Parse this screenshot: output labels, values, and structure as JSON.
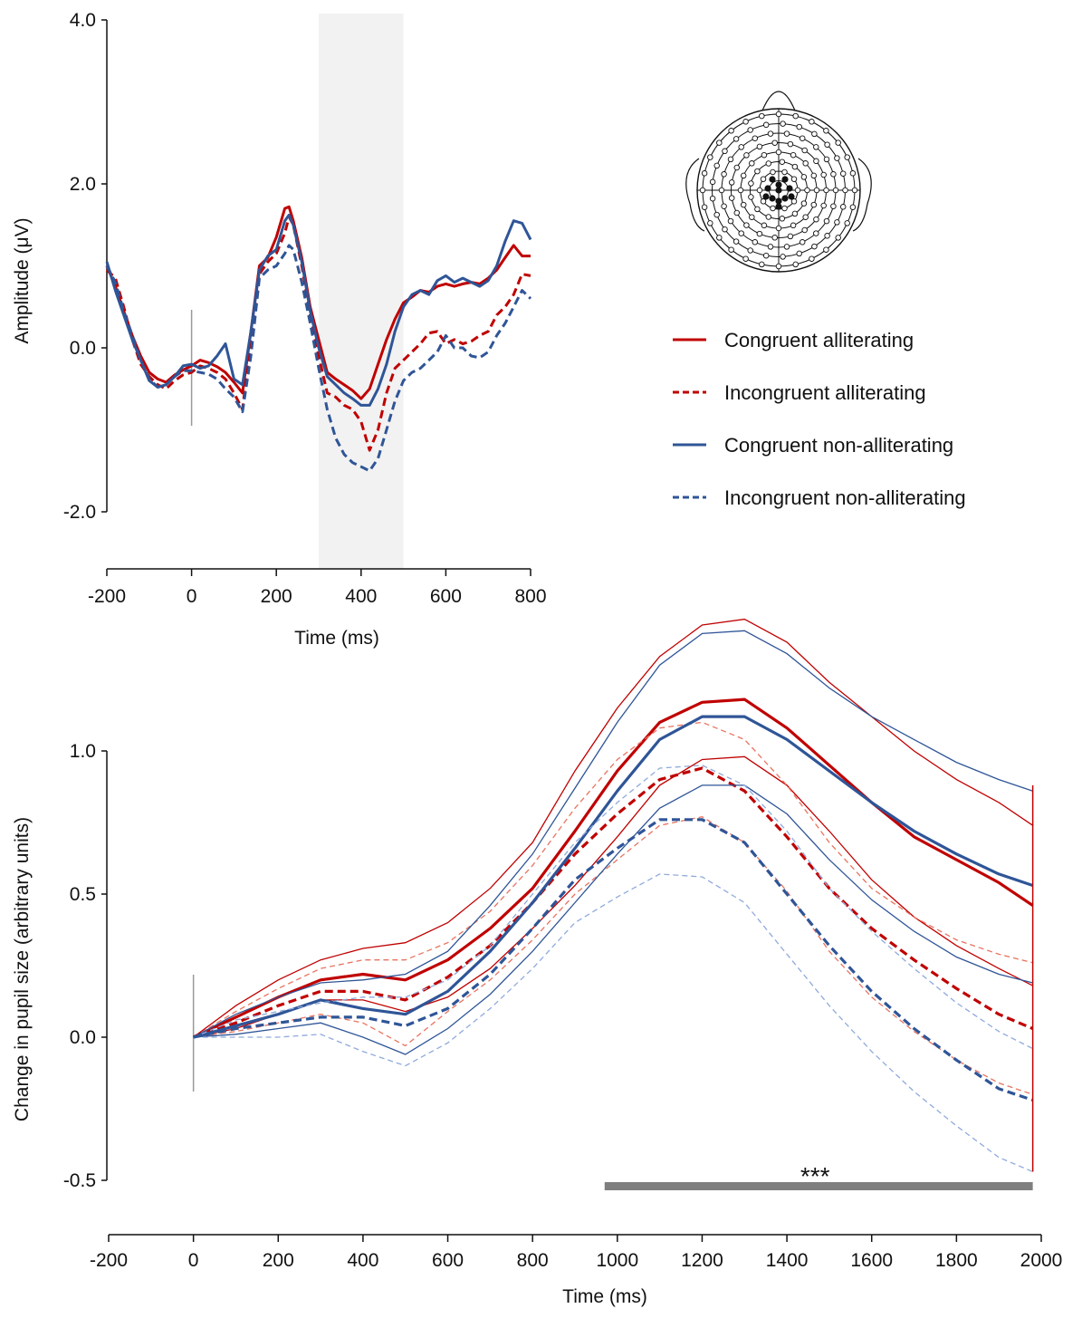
{
  "colors": {
    "red": "#c00000",
    "blue": "#2f5597",
    "light_red": "#e8735f",
    "light_blue": "#8faadc",
    "shade": "#f2f2f2",
    "sig_bar": "#7f7f7f"
  },
  "legend": {
    "items": [
      {
        "label": "Congruent alliterating",
        "style": "solid",
        "color": "#c00000"
      },
      {
        "label": "Incongruent alliterating",
        "style": "dashed",
        "color": "#c00000"
      },
      {
        "label": "Congruent non-alliterating",
        "style": "solid",
        "color": "#2f5597"
      },
      {
        "label": "Incongruent  non-alliterating",
        "style": "dashed",
        "color": "#2f5597"
      }
    ]
  },
  "chart_data": [
    {
      "type": "line",
      "xlabel": "Time (ms)",
      "ylabel": "Amplitude (μV)",
      "xlim": [
        -200,
        800
      ],
      "ylim": [
        -2.5,
        4.0
      ],
      "xticks": [
        -200,
        0,
        200,
        400,
        600,
        800
      ],
      "xtick_labels": [
        "-200",
        "0",
        "200",
        "400",
        "600",
        "800"
      ],
      "yticks": [
        4.0,
        2.0,
        0.0,
        -2.0
      ],
      "ytick_labels": [
        "4.0",
        "2.0",
        "0.0",
        "-2.0"
      ],
      "shaded_window": [
        300,
        500
      ],
      "stimulus_onset": 0,
      "series": [
        {
          "name": "Congruent alliterating",
          "style": "solid",
          "color": "#c00000",
          "x": [
            -200,
            -180,
            -160,
            -140,
            -120,
            -100,
            -80,
            -60,
            -40,
            -20,
            0,
            20,
            40,
            60,
            80,
            100,
            120,
            140,
            160,
            180,
            200,
            220,
            230,
            240,
            260,
            280,
            300,
            320,
            340,
            360,
            380,
            400,
            420,
            440,
            460,
            480,
            500,
            520,
            540,
            560,
            580,
            600,
            620,
            640,
            660,
            680,
            700,
            720,
            740,
            760,
            780,
            800
          ],
          "y": [
            1.0,
            0.75,
            0.45,
            0.15,
            -0.1,
            -0.3,
            -0.38,
            -0.42,
            -0.33,
            -0.27,
            -0.22,
            -0.15,
            -0.18,
            -0.23,
            -0.3,
            -0.42,
            -0.55,
            0.2,
            1.0,
            1.1,
            1.35,
            1.7,
            1.72,
            1.55,
            1.1,
            0.5,
            0.1,
            -0.3,
            -0.38,
            -0.45,
            -0.52,
            -0.62,
            -0.5,
            -0.2,
            0.1,
            0.35,
            0.55,
            0.62,
            0.7,
            0.68,
            0.75,
            0.78,
            0.75,
            0.78,
            0.8,
            0.78,
            0.85,
            0.95,
            1.1,
            1.25,
            1.12,
            1.12
          ]
        },
        {
          "name": "Incongruent alliterating",
          "style": "dashed",
          "color": "#c00000",
          "x": [
            -200,
            -180,
            -160,
            -140,
            -120,
            -100,
            -80,
            -60,
            -40,
            -20,
            0,
            20,
            40,
            60,
            80,
            100,
            120,
            140,
            160,
            180,
            200,
            220,
            230,
            240,
            260,
            280,
            300,
            320,
            340,
            360,
            380,
            400,
            420,
            440,
            460,
            480,
            500,
            520,
            540,
            560,
            580,
            600,
            620,
            640,
            660,
            680,
            700,
            720,
            740,
            760,
            780,
            800
          ],
          "y": [
            0.95,
            0.85,
            0.5,
            0.1,
            -0.2,
            -0.35,
            -0.45,
            -0.5,
            -0.4,
            -0.33,
            -0.3,
            -0.22,
            -0.25,
            -0.3,
            -0.38,
            -0.55,
            -0.75,
            0.1,
            0.9,
            1.05,
            1.15,
            1.4,
            1.6,
            1.5,
            1.0,
            0.4,
            -0.1,
            -0.55,
            -0.6,
            -0.7,
            -0.75,
            -0.9,
            -1.25,
            -1.0,
            -0.55,
            -0.25,
            -0.15,
            -0.05,
            0.05,
            0.18,
            0.2,
            0.05,
            0.1,
            0.05,
            0.08,
            0.15,
            0.2,
            0.4,
            0.5,
            0.65,
            0.9,
            0.88
          ]
        },
        {
          "name": "Congruent non-alliterating",
          "style": "solid",
          "color": "#2f5597",
          "x": [
            -200,
            -180,
            -160,
            -140,
            -120,
            -100,
            -80,
            -60,
            -40,
            -20,
            0,
            20,
            40,
            60,
            80,
            100,
            120,
            140,
            160,
            180,
            200,
            220,
            230,
            240,
            260,
            280,
            300,
            320,
            340,
            360,
            380,
            400,
            420,
            440,
            460,
            480,
            500,
            520,
            540,
            560,
            580,
            600,
            620,
            640,
            660,
            680,
            700,
            720,
            740,
            760,
            780,
            800
          ],
          "y": [
            1.05,
            0.7,
            0.4,
            0.1,
            -0.15,
            -0.4,
            -0.48,
            -0.45,
            -0.35,
            -0.22,
            -0.2,
            -0.25,
            -0.22,
            -0.1,
            0.05,
            -0.38,
            -0.45,
            0.2,
            0.95,
            1.12,
            1.2,
            1.55,
            1.62,
            1.5,
            1.05,
            0.45,
            0.0,
            -0.35,
            -0.45,
            -0.55,
            -0.62,
            -0.7,
            -0.7,
            -0.5,
            -0.2,
            0.2,
            0.5,
            0.65,
            0.7,
            0.65,
            0.82,
            0.88,
            0.8,
            0.85,
            0.8,
            0.75,
            0.82,
            1.0,
            1.3,
            1.55,
            1.52,
            1.32
          ]
        },
        {
          "name": "Incongruent  non-alliterating",
          "style": "dashed",
          "color": "#2f5597",
          "x": [
            -200,
            -180,
            -160,
            -140,
            -120,
            -100,
            -80,
            -60,
            -40,
            -20,
            0,
            20,
            40,
            60,
            80,
            100,
            120,
            140,
            160,
            180,
            200,
            220,
            230,
            240,
            260,
            280,
            300,
            320,
            340,
            360,
            380,
            400,
            420,
            440,
            460,
            480,
            500,
            520,
            540,
            560,
            580,
            600,
            620,
            640,
            660,
            680,
            700,
            720,
            740,
            760,
            780,
            800
          ],
          "y": [
            1.0,
            0.8,
            0.45,
            0.15,
            -0.15,
            -0.38,
            -0.48,
            -0.45,
            -0.35,
            -0.28,
            -0.28,
            -0.3,
            -0.32,
            -0.38,
            -0.5,
            -0.6,
            -0.78,
            -0.1,
            0.85,
            0.95,
            1.0,
            1.15,
            1.25,
            1.2,
            0.8,
            0.3,
            -0.25,
            -0.75,
            -1.1,
            -1.3,
            -1.4,
            -1.45,
            -1.5,
            -1.35,
            -1.0,
            -0.65,
            -0.4,
            -0.3,
            -0.25,
            -0.15,
            -0.05,
            0.15,
            0.0,
            0.0,
            -0.1,
            -0.12,
            -0.05,
            0.15,
            0.3,
            0.5,
            0.7,
            0.6
          ]
        }
      ]
    },
    {
      "type": "line",
      "xlabel": "Time (ms)",
      "ylabel": "Change in pupil size (arbitrary units)",
      "xlim": [
        -200,
        2000
      ],
      "ylim": [
        -0.5,
        1.0
      ],
      "xticks": [
        -200,
        0,
        200,
        400,
        600,
        800,
        1000,
        1200,
        1400,
        1600,
        1800,
        2000
      ],
      "xtick_labels": [
        "-200",
        "0",
        "200",
        "400",
        "600",
        "800",
        "1000",
        "1200",
        "1400",
        "1600",
        "1800",
        "2000"
      ],
      "yticks": [
        1.0,
        0.5,
        0.0,
        -0.5
      ],
      "ytick_labels": [
        "1.0",
        "0.5",
        "0.0",
        "-0.5"
      ],
      "stimulus_onset": 0,
      "significance": {
        "label": "***",
        "x_start": 970,
        "x_end": 1980
      },
      "series": [
        {
          "name": "Congruent alliterating",
          "style": "solid",
          "color": "#c00000",
          "x": [
            0,
            100,
            200,
            300,
            400,
            500,
            600,
            700,
            800,
            900,
            1000,
            1100,
            1200,
            1300,
            1400,
            1500,
            1600,
            1700,
            1800,
            1900,
            1980
          ],
          "y": [
            0,
            0.07,
            0.14,
            0.2,
            0.22,
            0.2,
            0.27,
            0.38,
            0.52,
            0.72,
            0.93,
            1.1,
            1.17,
            1.18,
            1.08,
            0.95,
            0.82,
            0.7,
            0.62,
            0.54,
            0.46
          ],
          "upper": [
            0,
            0.11,
            0.2,
            0.27,
            0.31,
            0.33,
            0.4,
            0.52,
            0.68,
            0.93,
            1.15,
            1.33,
            1.44,
            1.46,
            1.38,
            1.24,
            1.12,
            1.0,
            0.9,
            0.82,
            0.74
          ],
          "lower": [
            0,
            0.03,
            0.08,
            0.13,
            0.13,
            0.09,
            0.14,
            0.24,
            0.38,
            0.53,
            0.7,
            0.88,
            0.97,
            0.98,
            0.88,
            0.72,
            0.55,
            0.42,
            0.32,
            0.24,
            0.18
          ]
        },
        {
          "name": "Incongruent alliterating",
          "style": "dashed",
          "color": "#c00000",
          "x": [
            0,
            100,
            200,
            300,
            400,
            500,
            600,
            700,
            800,
            900,
            1000,
            1100,
            1200,
            1300,
            1400,
            1500,
            1600,
            1700,
            1800,
            1900,
            1980
          ],
          "y": [
            0,
            0.05,
            0.11,
            0.16,
            0.16,
            0.13,
            0.21,
            0.32,
            0.47,
            0.64,
            0.78,
            0.9,
            0.94,
            0.86,
            0.7,
            0.52,
            0.38,
            0.27,
            0.17,
            0.08,
            0.03
          ],
          "upper": [
            0,
            0.09,
            0.17,
            0.24,
            0.27,
            0.27,
            0.33,
            0.44,
            0.6,
            0.8,
            0.97,
            1.08,
            1.1,
            1.04,
            0.88,
            0.68,
            0.52,
            0.42,
            0.34,
            0.29,
            0.26
          ],
          "lower": [
            0,
            0.02,
            0.05,
            0.08,
            0.05,
            -0.03,
            0.09,
            0.2,
            0.34,
            0.5,
            0.62,
            0.74,
            0.77,
            0.68,
            0.51,
            0.3,
            0.14,
            0.02,
            -0.08,
            -0.16,
            -0.2
          ]
        },
        {
          "name": "Congruent non-alliterating",
          "style": "solid",
          "color": "#2f5597",
          "x": [
            0,
            100,
            200,
            300,
            400,
            500,
            600,
            700,
            800,
            900,
            1000,
            1100,
            1200,
            1300,
            1400,
            1500,
            1600,
            1700,
            1800,
            1900,
            1980
          ],
          "y": [
            0,
            0.04,
            0.08,
            0.13,
            0.1,
            0.08,
            0.16,
            0.3,
            0.47,
            0.66,
            0.86,
            1.04,
            1.12,
            1.12,
            1.04,
            0.93,
            0.82,
            0.72,
            0.64,
            0.57,
            0.53
          ],
          "upper": [
            0,
            0.08,
            0.14,
            0.19,
            0.2,
            0.22,
            0.3,
            0.46,
            0.64,
            0.87,
            1.1,
            1.3,
            1.41,
            1.42,
            1.34,
            1.22,
            1.12,
            1.04,
            0.96,
            0.9,
            0.86
          ],
          "lower": [
            0,
            0.01,
            0.03,
            0.05,
            0.0,
            -0.06,
            0.03,
            0.15,
            0.3,
            0.47,
            0.64,
            0.8,
            0.88,
            0.88,
            0.78,
            0.62,
            0.48,
            0.37,
            0.28,
            0.22,
            0.19
          ]
        },
        {
          "name": "Incongruent  non-alliterating",
          "style": "dashed",
          "color": "#2f5597",
          "x": [
            0,
            100,
            200,
            300,
            400,
            500,
            600,
            700,
            800,
            900,
            1000,
            1100,
            1200,
            1300,
            1400,
            1500,
            1600,
            1700,
            1800,
            1900,
            1980
          ],
          "y": [
            0,
            0.03,
            0.05,
            0.07,
            0.07,
            0.04,
            0.1,
            0.22,
            0.38,
            0.55,
            0.66,
            0.76,
            0.76,
            0.68,
            0.5,
            0.32,
            0.16,
            0.03,
            -0.08,
            -0.18,
            -0.22
          ],
          "upper": [
            0,
            0.06,
            0.09,
            0.12,
            0.14,
            0.14,
            0.2,
            0.32,
            0.5,
            0.68,
            0.82,
            0.94,
            0.95,
            0.88,
            0.72,
            0.52,
            0.37,
            0.24,
            0.12,
            0.02,
            -0.04
          ],
          "lower": [
            0,
            0.0,
            0.0,
            0.01,
            -0.05,
            -0.1,
            -0.02,
            0.1,
            0.24,
            0.4,
            0.49,
            0.57,
            0.56,
            0.47,
            0.29,
            0.11,
            -0.05,
            -0.19,
            -0.31,
            -0.42,
            -0.47
          ]
        }
      ]
    }
  ]
}
